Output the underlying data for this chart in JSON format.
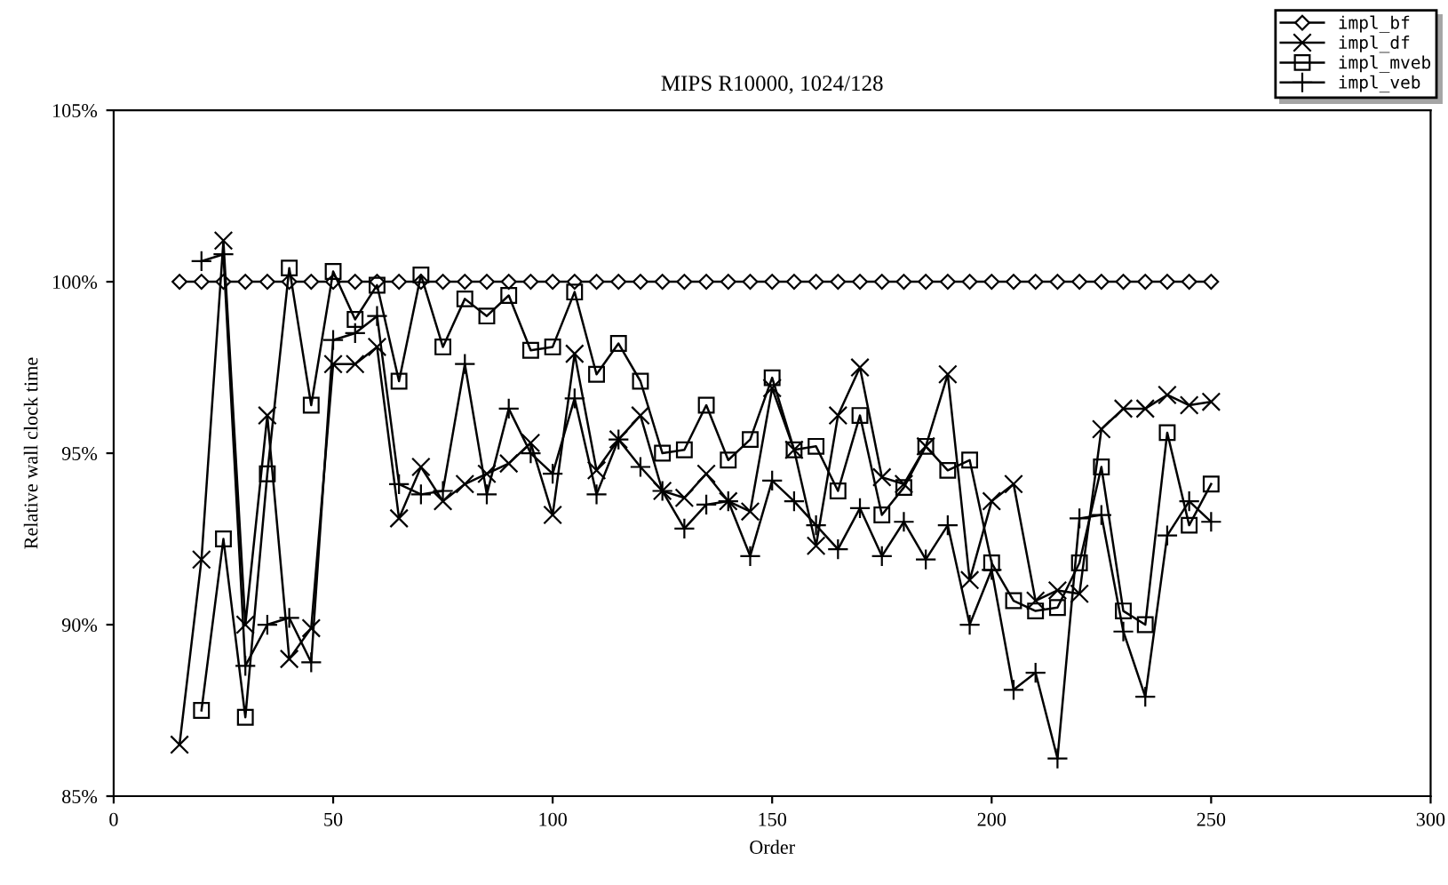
{
  "chart_data": {
    "type": "line",
    "title": "MIPS R10000, 1024/128",
    "xlabel": "Order",
    "ylabel": "Relative wall clock time",
    "x": [
      15,
      20,
      25,
      30,
      35,
      40,
      45,
      50,
      55,
      60,
      65,
      70,
      75,
      80,
      85,
      90,
      95,
      100,
      105,
      110,
      115,
      120,
      125,
      130,
      135,
      140,
      145,
      150,
      155,
      160,
      165,
      170,
      175,
      180,
      185,
      190,
      195,
      200,
      205,
      210,
      215,
      220,
      225,
      230,
      235,
      240,
      245,
      250
    ],
    "series": [
      {
        "name": "impl_bf",
        "color": "#000000",
        "marker": "diamond",
        "values": [
          100,
          100,
          100,
          100,
          100,
          100,
          100,
          100,
          100,
          100,
          100,
          100,
          100,
          100,
          100,
          100,
          100,
          100,
          100,
          100,
          100,
          100,
          100,
          100,
          100,
          100,
          100,
          100,
          100,
          100,
          100,
          100,
          100,
          100,
          100,
          100,
          100,
          100,
          100,
          100,
          100,
          100,
          100,
          100,
          100,
          100,
          100,
          100
        ]
      },
      {
        "name": "impl_df",
        "color": "#000000",
        "marker": "cross",
        "values": [
          86.5,
          91.9,
          101.2,
          90.0,
          96.1,
          89.0,
          89.9,
          97.6,
          97.6,
          98.1,
          93.1,
          94.6,
          93.6,
          94.1,
          94.4,
          94.7,
          95.3,
          93.2,
          97.9,
          94.5,
          95.4,
          96.1,
          93.9,
          93.7,
          94.4,
          93.6,
          93.3,
          96.9,
          95.1,
          92.3,
          96.1,
          97.5,
          94.3,
          94.1,
          95.2,
          97.3,
          91.3,
          93.6,
          94.1,
          90.7,
          91.0,
          90.9,
          95.7,
          96.3,
          96.3,
          96.7,
          96.4,
          96.5
        ]
      },
      {
        "name": "impl_mveb",
        "color": "#000000",
        "marker": "square",
        "values": [
          null,
          87.5,
          92.5,
          87.3,
          94.4,
          100.4,
          96.4,
          100.3,
          98.9,
          99.9,
          97.1,
          100.2,
          98.1,
          99.5,
          99.0,
          99.6,
          98.0,
          98.1,
          99.7,
          97.3,
          98.2,
          97.1,
          95.0,
          95.1,
          96.4,
          94.8,
          95.4,
          97.2,
          95.1,
          95.2,
          93.9,
          96.1,
          93.2,
          94.0,
          95.2,
          94.5,
          94.8,
          91.8,
          90.7,
          90.4,
          90.5,
          91.8,
          94.6,
          90.4,
          90.0,
          95.6,
          92.9,
          94.1
        ]
      },
      {
        "name": "impl_veb",
        "color": "#000000",
        "marker": "plus",
        "values": [
          null,
          100.6,
          100.8,
          88.8,
          90.0,
          90.2,
          88.9,
          98.3,
          98.5,
          99.0,
          94.1,
          93.8,
          93.9,
          97.6,
          93.8,
          96.3,
          95.0,
          94.4,
          96.6,
          93.8,
          95.4,
          94.6,
          93.9,
          92.8,
          93.5,
          93.6,
          92.0,
          94.2,
          93.6,
          92.9,
          92.2,
          93.4,
          92.0,
          93.0,
          91.9,
          92.9,
          90.0,
          91.6,
          88.1,
          88.6,
          86.1,
          93.1,
          93.2,
          89.8,
          87.9,
          92.6,
          93.6,
          93.0
        ]
      }
    ],
    "xlim": [
      0,
      300
    ],
    "xticks": [
      0,
      50,
      100,
      150,
      200,
      250,
      300
    ],
    "ylim": [
      85,
      105
    ],
    "yticks": [
      {
        "value": 85,
        "label": "85%"
      },
      {
        "value": 90,
        "label": "90%"
      },
      {
        "value": 95,
        "label": "95%"
      },
      {
        "value": 100,
        "label": "100%"
      },
      {
        "value": 105,
        "label": "105%"
      }
    ],
    "legend": "top right",
    "line_style": "solid"
  }
}
